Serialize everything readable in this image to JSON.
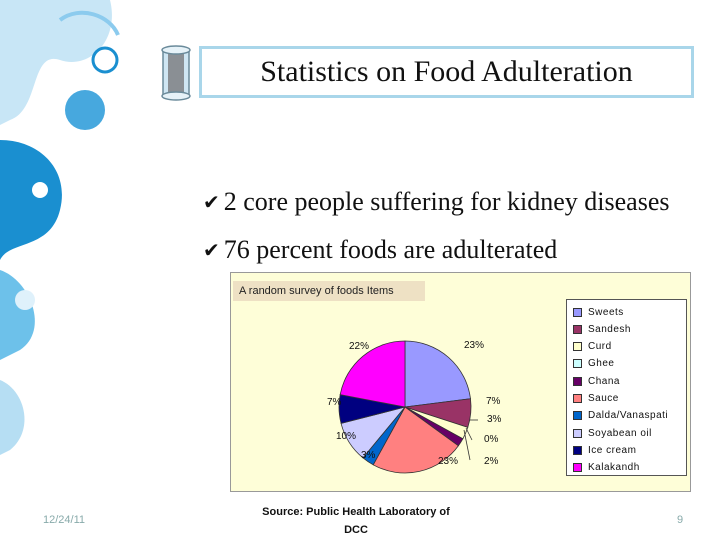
{
  "slide": {
    "title": "Statistics  on Food Adulteration",
    "bullets": [
      "2 core people suffering for kidney diseases",
      "76 percent foods are adulterated"
    ],
    "source_line1": "Source: Public Health Laboratory of",
    "source_line2": "DCC",
    "date": "12/24/11",
    "page_number": "9"
  },
  "chart_data": {
    "type": "pie",
    "title": "A random survey of foods Items",
    "legend_position": "right",
    "categories": [
      "Sweets",
      "Sandesh",
      "Curd",
      "Ghee",
      "Chana",
      "Sauce",
      "Dalda/Vanaspati",
      "Soyabean oil",
      "Ice cream",
      "Kalakandh"
    ],
    "values": [
      23,
      7,
      3,
      0,
      2,
      23,
      3,
      10,
      7,
      22
    ],
    "labels": [
      "23%",
      "7%",
      "3%",
      "0%",
      "2%",
      "23%",
      "3%",
      "10%",
      "7%",
      "22%"
    ],
    "colors": [
      "#9999ff",
      "#993366",
      "#ffffcc",
      "#ccffff",
      "#660066",
      "#ff8080",
      "#0066cc",
      "#ccccff",
      "#000080",
      "#ff00ff"
    ]
  }
}
